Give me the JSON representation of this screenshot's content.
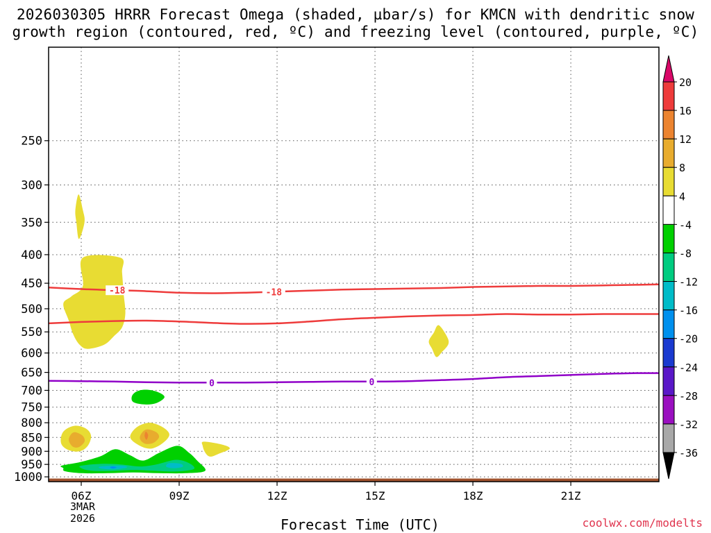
{
  "header": {
    "title_line1": "2026030305 HRRR Forecast Omega (shaded, µbar/s) for KMCN with dendritic snow",
    "title_line2": "growth region (contoured, red, ºC) and freezing level (contoured, purple, ºC)"
  },
  "footer": {
    "credit": "coolwx.com/modelts",
    "date_month": "3MAR",
    "date_year": "2026"
  },
  "chart_data": {
    "type": "time-height contour",
    "title": "2026030305 HRRR Forecast Omega (shaded, µbar/s) for KMCN with dendritic snow growth region (contoured, red, ºC) and freezing level (contoured, purple, ºC)",
    "xlabel": "Forecast Time (UTC)",
    "ylabel": "",
    "xlim_hours": [
      5,
      23.7
    ],
    "ylim_hpa": [
      1020,
      170
    ],
    "x_ticks": [
      {
        "hour": 6,
        "label": "06Z"
      },
      {
        "hour": 9,
        "label": "09Z"
      },
      {
        "hour": 12,
        "label": "12Z"
      },
      {
        "hour": 15,
        "label": "15Z"
      },
      {
        "hour": 18,
        "label": "18Z"
      },
      {
        "hour": 21,
        "label": "21Z"
      }
    ],
    "y_ticks": [
      250,
      300,
      350,
      400,
      450,
      500,
      550,
      600,
      650,
      700,
      750,
      800,
      850,
      900,
      950,
      1000
    ],
    "colorbar": {
      "label_values": [
        "20",
        "16",
        "12",
        "8",
        "4",
        "-4",
        "-8",
        "-12",
        "-16",
        "-20",
        "-24",
        "-28",
        "-32",
        "-36"
      ],
      "bins": [
        {
          "color": "#d90868",
          "range": "above 20"
        },
        {
          "color": "#ee3b3b",
          "range": "16 to 20"
        },
        {
          "color": "#ec8430",
          "range": "12 to 16"
        },
        {
          "color": "#e8ac2e",
          "range": "8 to 12"
        },
        {
          "color": "#e8dc33",
          "range": "4 to 8"
        },
        {
          "color": "#ffffff",
          "range": "-4 to 4"
        },
        {
          "color": "#00d000",
          "range": "-8 to -4"
        },
        {
          "color": "#00cc80",
          "range": "-12 to -8"
        },
        {
          "color": "#00bcc8",
          "range": "-16 to -12"
        },
        {
          "color": "#0090ee",
          "range": "-20 to -16"
        },
        {
          "color": "#1a3ad0",
          "range": "-24 to -20"
        },
        {
          "color": "#5a18c8",
          "range": "-28 to -24"
        },
        {
          "color": "#9a10c0",
          "range": "-32 to -28"
        },
        {
          "color": "#a8a8a8",
          "range": "-36 to -32"
        },
        {
          "color": "#000000",
          "range": "below -36"
        }
      ]
    },
    "contours": [
      {
        "name": "dgz-top-minus18",
        "label": "-18",
        "color": "#ee3b3b",
        "points": [
          [
            5,
            458
          ],
          [
            6,
            461
          ],
          [
            7,
            463
          ],
          [
            8,
            465
          ],
          [
            9,
            468
          ],
          [
            10,
            469
          ],
          [
            11,
            468
          ],
          [
            12,
            466
          ],
          [
            13,
            464
          ],
          [
            14,
            462
          ],
          [
            15,
            461
          ],
          [
            16,
            460
          ],
          [
            17,
            459
          ],
          [
            18,
            457
          ],
          [
            19,
            456
          ],
          [
            20,
            455
          ],
          [
            21,
            455
          ],
          [
            22,
            454
          ],
          [
            23,
            453
          ],
          [
            23.7,
            452
          ]
        ],
        "label_hours": [
          7.1,
          11.9
        ]
      },
      {
        "name": "dgz-bottom-minus12",
        "label": "",
        "color": "#ee3b3b",
        "points": [
          [
            5,
            531
          ],
          [
            6,
            528
          ],
          [
            7,
            526
          ],
          [
            8,
            525
          ],
          [
            9,
            527
          ],
          [
            10,
            530
          ],
          [
            11,
            532
          ],
          [
            12,
            531
          ],
          [
            13,
            527
          ],
          [
            14,
            522
          ],
          [
            15,
            519
          ],
          [
            16,
            516
          ],
          [
            17,
            514
          ],
          [
            18,
            513
          ],
          [
            19,
            511
          ],
          [
            20,
            512
          ],
          [
            21,
            512
          ],
          [
            22,
            511
          ],
          [
            23,
            511
          ],
          [
            23.7,
            511
          ]
        ],
        "label_hours": []
      },
      {
        "name": "freezing-level-0",
        "label": "0",
        "color": "#9000c8",
        "points": [
          [
            5,
            673
          ],
          [
            6,
            674
          ],
          [
            7,
            675
          ],
          [
            8,
            677
          ],
          [
            9,
            678
          ],
          [
            10,
            678
          ],
          [
            11,
            678
          ],
          [
            12,
            677
          ],
          [
            13,
            676
          ],
          [
            14,
            675
          ],
          [
            15,
            675
          ],
          [
            16,
            674
          ],
          [
            17,
            671
          ],
          [
            18,
            668
          ],
          [
            19,
            663
          ],
          [
            20,
            660
          ],
          [
            21,
            657
          ],
          [
            22,
            654
          ],
          [
            23,
            652
          ],
          [
            23.7,
            652
          ]
        ],
        "label_hours": [
          10,
          14.9
        ]
      }
    ],
    "omega_regions": [
      {
        "name": "upward-yellow-upper",
        "color": "#e8dc33",
        "level": "4 to 8",
        "points": [
          [
            6.05,
            405
          ],
          [
            7.2,
            405
          ],
          [
            7.25,
            430
          ],
          [
            7.3,
            470
          ],
          [
            7.35,
            510
          ],
          [
            7.25,
            540
          ],
          [
            7.0,
            560
          ],
          [
            6.7,
            580
          ],
          [
            6.2,
            590
          ],
          [
            5.95,
            580
          ],
          [
            5.75,
            555
          ],
          [
            5.62,
            525
          ],
          [
            5.45,
            490
          ],
          [
            5.7,
            475
          ],
          [
            6.05,
            455
          ]
        ]
      },
      {
        "name": "upward-yellow-small-top",
        "color": "#e8dc33",
        "level": "4 to 8",
        "points": [
          [
            5.92,
            312
          ],
          [
            6.05,
            333
          ],
          [
            6.1,
            350
          ],
          [
            5.93,
            375
          ],
          [
            5.85,
            350
          ],
          [
            5.82,
            333
          ]
        ]
      },
      {
        "name": "upward-yellow-right",
        "color": "#e8dc33",
        "level": "4 to 8",
        "points": [
          [
            16.95,
            535
          ],
          [
            17.2,
            560
          ],
          [
            17.25,
            578
          ],
          [
            17.05,
            598
          ],
          [
            16.88,
            610
          ],
          [
            16.75,
            590
          ],
          [
            16.65,
            572
          ],
          [
            16.8,
            552
          ]
        ]
      },
      {
        "name": "upward-yellow-left",
        "color": "#e8dc33",
        "level": "4 to 8",
        "points": [
          [
            5.8,
            810
          ],
          [
            6.15,
            820
          ],
          [
            6.3,
            845
          ],
          [
            6.2,
            880
          ],
          [
            5.95,
            900
          ],
          [
            5.6,
            895
          ],
          [
            5.38,
            870
          ],
          [
            5.45,
            830
          ]
        ]
      },
      {
        "name": "upward-orange-left",
        "color": "#e8ac2e",
        "level": "8 to 12",
        "points": [
          [
            5.82,
            832
          ],
          [
            6.05,
            845
          ],
          [
            6.1,
            865
          ],
          [
            5.92,
            885
          ],
          [
            5.73,
            882
          ],
          [
            5.62,
            860
          ],
          [
            5.68,
            840
          ]
        ]
      },
      {
        "name": "upward-yellow-mid",
        "color": "#e8dc33",
        "level": "4 to 8",
        "points": [
          [
            8.1,
            800
          ],
          [
            8.5,
            815
          ],
          [
            8.7,
            840
          ],
          [
            8.5,
            870
          ],
          [
            8.15,
            890
          ],
          [
            7.8,
            880
          ],
          [
            7.5,
            850
          ],
          [
            7.7,
            815
          ]
        ]
      },
      {
        "name": "upward-orange-mid",
        "color": "#e8ac2e",
        "level": "8 to 12",
        "points": [
          [
            8.02,
            822
          ],
          [
            8.3,
            832
          ],
          [
            8.38,
            850
          ],
          [
            8.2,
            870
          ],
          [
            7.95,
            872
          ],
          [
            7.8,
            855
          ],
          [
            7.85,
            835
          ]
        ]
      },
      {
        "name": "upward-darkorange-mid",
        "color": "#ec8430",
        "level": "12 to 16",
        "points": [
          [
            7.98,
            830
          ],
          [
            8.05,
            842
          ],
          [
            8.0,
            858
          ],
          [
            7.94,
            845
          ]
        ]
      },
      {
        "name": "upward-yellow-small-low",
        "color": "#e8dc33",
        "level": "4 to 8",
        "points": [
          [
            9.75,
            865
          ],
          [
            10.3,
            875
          ],
          [
            10.55,
            890
          ],
          [
            10.2,
            910
          ],
          [
            9.95,
            920
          ],
          [
            9.8,
            905
          ],
          [
            9.72,
            880
          ]
        ]
      },
      {
        "name": "downward-green-mid",
        "color": "#00d000",
        "level": "-8 to -4",
        "points": [
          [
            8.0,
            698
          ],
          [
            8.35,
            705
          ],
          [
            8.55,
            720
          ],
          [
            8.3,
            738
          ],
          [
            7.95,
            742
          ],
          [
            7.6,
            735
          ],
          [
            7.55,
            718
          ],
          [
            7.7,
            703
          ]
        ]
      },
      {
        "name": "downward-green-low",
        "color": "#00d000",
        "level": "-8 to -4",
        "points": [
          [
            5.4,
            955
          ],
          [
            6.0,
            940
          ],
          [
            6.6,
            918
          ],
          [
            7.05,
            892
          ],
          [
            7.5,
            915
          ],
          [
            7.9,
            935
          ],
          [
            8.4,
            905
          ],
          [
            8.95,
            880
          ],
          [
            9.3,
            905
          ],
          [
            9.55,
            935
          ],
          [
            9.8,
            975
          ],
          [
            9.2,
            985
          ],
          [
            8.4,
            985
          ],
          [
            7.6,
            982
          ],
          [
            6.8,
            985
          ],
          [
            6.0,
            985
          ],
          [
            5.5,
            977
          ],
          [
            5.45,
            965
          ]
        ]
      },
      {
        "name": "downward-teal-low",
        "color": "#00cc80",
        "level": "-12 to -8",
        "points": [
          [
            6.0,
            955
          ],
          [
            6.6,
            948
          ],
          [
            7.2,
            950
          ],
          [
            7.8,
            958
          ],
          [
            8.3,
            950
          ],
          [
            8.9,
            932
          ],
          [
            9.3,
            945
          ],
          [
            9.45,
            968
          ],
          [
            8.9,
            978
          ],
          [
            8.2,
            975
          ],
          [
            7.6,
            972
          ],
          [
            6.9,
            976
          ],
          [
            6.3,
            975
          ],
          [
            6.0,
            965
          ]
        ]
      },
      {
        "name": "downward-cyan-low",
        "color": "#00bcc8",
        "level": "-16 to -12",
        "points": [
          [
            6.6,
            958
          ],
          [
            7.2,
            955
          ],
          [
            7.4,
            962
          ],
          [
            7.0,
            970
          ],
          [
            6.6,
            966
          ]
        ]
      },
      {
        "name": "downward-cyan-low-2",
        "color": "#00bcc8",
        "level": "-16 to -12",
        "points": [
          [
            8.7,
            945
          ],
          [
            9.05,
            948
          ],
          [
            9.1,
            960
          ],
          [
            8.8,
            965
          ],
          [
            8.6,
            958
          ]
        ]
      },
      {
        "name": "downward-blue-core",
        "color": "#0090ee",
        "level": "-20 to -16",
        "points": [
          [
            6.95,
            958
          ],
          [
            7.08,
            961
          ],
          [
            6.98,
            966
          ],
          [
            6.88,
            962
          ]
        ]
      }
    ],
    "terrain": {
      "color": "#a0522d",
      "top_hpa": 1007
    }
  },
  "axes": {
    "xlabel": "Forecast Time (UTC)"
  }
}
